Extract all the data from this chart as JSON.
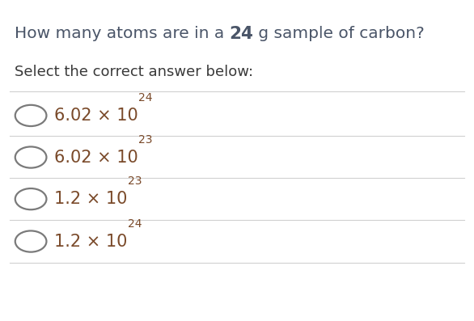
{
  "title_prefix": "How many atoms are in a ",
  "title_bold": "24",
  "title_suffix": " g sample of carbon?",
  "subtitle": "Select the correct answer below:",
  "options": [
    {
      "base": "6.02 × 10",
      "exp": "24"
    },
    {
      "base": "6.02 × 10",
      "exp": "23"
    },
    {
      "base": "1.2 × 10",
      "exp": "23"
    },
    {
      "base": "1.2 × 10",
      "exp": "24"
    }
  ],
  "bg_color": "#ffffff",
  "title_color": "#4a5568",
  "option_color": "#7a4a2a",
  "circle_color": "#7a7a7a",
  "line_color": "#d0d0d0",
  "subtitle_color": "#3a3a3a",
  "title_fontsize": 14.5,
  "subtitle_fontsize": 13,
  "option_fontsize": 15,
  "fig_width": 5.86,
  "fig_height": 3.97,
  "dpi": 100
}
